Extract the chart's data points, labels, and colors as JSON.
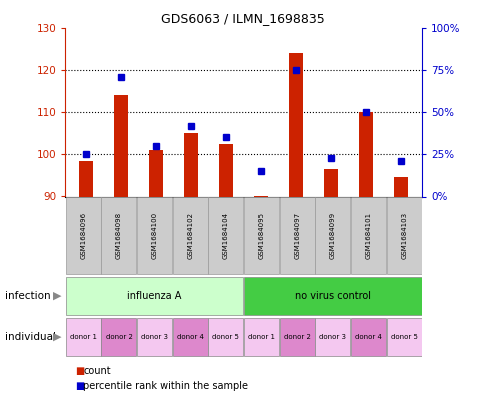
{
  "title": "GDS6063 / ILMN_1698835",
  "samples": [
    "GSM1684096",
    "GSM1684098",
    "GSM1684100",
    "GSM1684102",
    "GSM1684104",
    "GSM1684095",
    "GSM1684097",
    "GSM1684099",
    "GSM1684101",
    "GSM1684103"
  ],
  "count_values": [
    98.5,
    114.0,
    101.0,
    105.0,
    102.5,
    90.2,
    124.0,
    96.5,
    110.0,
    94.5
  ],
  "percentile_values": [
    25,
    71,
    30,
    42,
    35,
    15,
    75,
    23,
    50,
    21
  ],
  "ylim_left": [
    90,
    130
  ],
  "ylim_right": [
    0,
    100
  ],
  "yticks_left": [
    90,
    100,
    110,
    120,
    130
  ],
  "yticks_right": [
    0,
    25,
    50,
    75,
    100
  ],
  "infection_groups": [
    {
      "label": "influenza A",
      "start": 0,
      "end": 5,
      "color": "#ccffcc"
    },
    {
      "label": "no virus control",
      "start": 5,
      "end": 10,
      "color": "#44cc44"
    }
  ],
  "individual_labels": [
    "donor 1",
    "donor 2",
    "donor 3",
    "donor 4",
    "donor 5",
    "donor 1",
    "donor 2",
    "donor 3",
    "donor 4",
    "donor 5"
  ],
  "individual_colors": [
    "#f4c8f0",
    "#dd88cc",
    "#f4c8f0",
    "#dd88cc",
    "#f4c8f0",
    "#f4c8f0",
    "#dd88cc",
    "#f4c8f0",
    "#dd88cc",
    "#f4c8f0"
  ],
  "bar_color": "#cc2200",
  "dot_color": "#0000cc",
  "grid_color": "#000000",
  "axis_left_color": "#cc2200",
  "axis_right_color": "#0000cc",
  "background_color": "#ffffff",
  "legend_count_color": "#cc2200",
  "legend_pct_color": "#0000cc",
  "sample_box_color": "#cccccc",
  "sample_box_edge": "#999999"
}
